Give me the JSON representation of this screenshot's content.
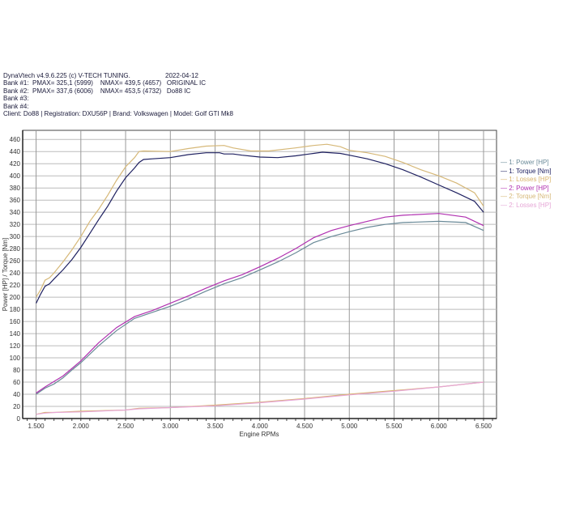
{
  "header": {
    "app": "DynaVtech v4.9.6.225 (c) V-TECH TUNING.",
    "date": "2022-04-12",
    "bank1": "Bank #1:  PMAX= 325,1 (5999)    NMAX= 439,5 (4657)   ORIGINAL IC",
    "bank2": "Bank #2:  PMAX= 337,6 (6006)    NMAX= 453,5 (4732)   Do88 IC",
    "bank3": "Bank #3:",
    "bank4": "Bank #4:",
    "client": "Client: Do88 | Registration: DXU56P | Brand: Volkswagen | Model: Golf GTI Mk8"
  },
  "chart_data": {
    "type": "line",
    "xlabel": "Engine RPMs",
    "ylabel": "Power [HP] / Torque [Nm]",
    "xlim": [
      1350,
      6645
    ],
    "ylim": [
      0,
      475
    ],
    "xticks": [
      1500,
      2000,
      2500,
      3000,
      3500,
      4000,
      4500,
      5000,
      5500,
      6000,
      6500
    ],
    "xtick_labels": [
      "1.500",
      "2.000",
      "2.500",
      "3.000",
      "3.500",
      "4.000",
      "4.500",
      "5.000",
      "5.500",
      "6.000",
      "6.500"
    ],
    "yticks": [
      0,
      20,
      40,
      60,
      80,
      100,
      120,
      140,
      160,
      180,
      200,
      220,
      240,
      260,
      280,
      300,
      320,
      340,
      360,
      380,
      400,
      420,
      440,
      460
    ],
    "grid": true,
    "legend": "right",
    "series": [
      {
        "name": "1: Power [HP]",
        "color": "#6a8a98",
        "x": [
          1500,
          1600,
          1700,
          1800,
          1900,
          2000,
          2200,
          2400,
          2600,
          2800,
          3000,
          3200,
          3400,
          3600,
          3800,
          4000,
          4200,
          4400,
          4600,
          4800,
          5000,
          5200,
          5400,
          5600,
          6000,
          6300,
          6500
        ],
        "y": [
          40,
          50,
          57,
          67,
          80,
          92,
          120,
          145,
          165,
          175,
          185,
          197,
          210,
          222,
          232,
          245,
          258,
          273,
          290,
          300,
          308,
          315,
          320,
          323,
          325,
          323,
          310
        ]
      },
      {
        "name": "1: Torque [Nm]",
        "color": "#1e2060",
        "x": [
          1500,
          1550,
          1600,
          1650,
          1700,
          1800,
          1900,
          2000,
          2100,
          2200,
          2300,
          2400,
          2500,
          2600,
          2650,
          2700,
          2800,
          3000,
          3200,
          3400,
          3550,
          3600,
          3700,
          3800,
          4000,
          4200,
          4400,
          4600,
          4700,
          4900,
          5000,
          5200,
          5400,
          5600,
          5800,
          6000,
          6200,
          6400,
          6500
        ],
        "y": [
          190,
          205,
          218,
          222,
          230,
          245,
          262,
          282,
          305,
          328,
          350,
          375,
          397,
          413,
          422,
          427,
          428,
          430,
          435,
          438,
          438,
          436,
          436,
          434,
          431,
          430,
          433,
          437,
          439,
          437,
          434,
          428,
          420,
          410,
          398,
          385,
          372,
          358,
          340
        ]
      },
      {
        "name": "1: Losses [HP]",
        "color": "#d8b36a",
        "x": [
          1500,
          1600,
          1700,
          2000,
          2500,
          2650,
          3000,
          3500,
          4000,
          4500,
          5000,
          5500,
          6000,
          6500
        ],
        "y": [
          7,
          10,
          10,
          12,
          14,
          17,
          18,
          22,
          27,
          33,
          40,
          46,
          52,
          60
        ]
      },
      {
        "name": "2: Power [HP]",
        "color": "#b030b0",
        "x": [
          1500,
          1600,
          1800,
          2000,
          2200,
          2400,
          2600,
          2800,
          3000,
          3200,
          3400,
          3600,
          3800,
          4000,
          4200,
          4400,
          4600,
          4800,
          5000,
          5200,
          5400,
          5600,
          6000,
          6300,
          6500
        ],
        "y": [
          42,
          52,
          70,
          95,
          125,
          150,
          168,
          178,
          190,
          202,
          215,
          227,
          237,
          250,
          264,
          280,
          298,
          310,
          318,
          325,
          332,
          335,
          338,
          332,
          318
        ]
      },
      {
        "name": "2: Torque [Nm]",
        "color": "#d6b878",
        "x": [
          1500,
          1550,
          1600,
          1650,
          1700,
          1800,
          1900,
          2000,
          2100,
          2200,
          2300,
          2400,
          2500,
          2600,
          2650,
          2700,
          3000,
          3200,
          3400,
          3600,
          3700,
          3900,
          4100,
          4400,
          4600,
          4750,
          4900,
          5000,
          5200,
          5400,
          5600,
          5800,
          6000,
          6200,
          6400,
          6500
        ],
        "y": [
          200,
          212,
          228,
          232,
          240,
          258,
          278,
          300,
          325,
          345,
          368,
          393,
          415,
          430,
          440,
          441,
          440,
          445,
          449,
          450,
          446,
          441,
          441,
          446,
          450,
          452,
          448,
          442,
          438,
          432,
          422,
          410,
          400,
          388,
          372,
          350
        ]
      },
      {
        "name": "2: Losses [HP]",
        "color": "#e6a6d6",
        "x": [
          1500,
          1600,
          1700,
          2000,
          2500,
          2650,
          3000,
          3500,
          4000,
          4500,
          5000,
          5500,
          6000,
          6500
        ],
        "y": [
          7,
          9,
          10,
          11,
          14,
          16,
          18,
          21,
          26,
          32,
          39,
          45,
          52,
          60
        ]
      }
    ]
  }
}
